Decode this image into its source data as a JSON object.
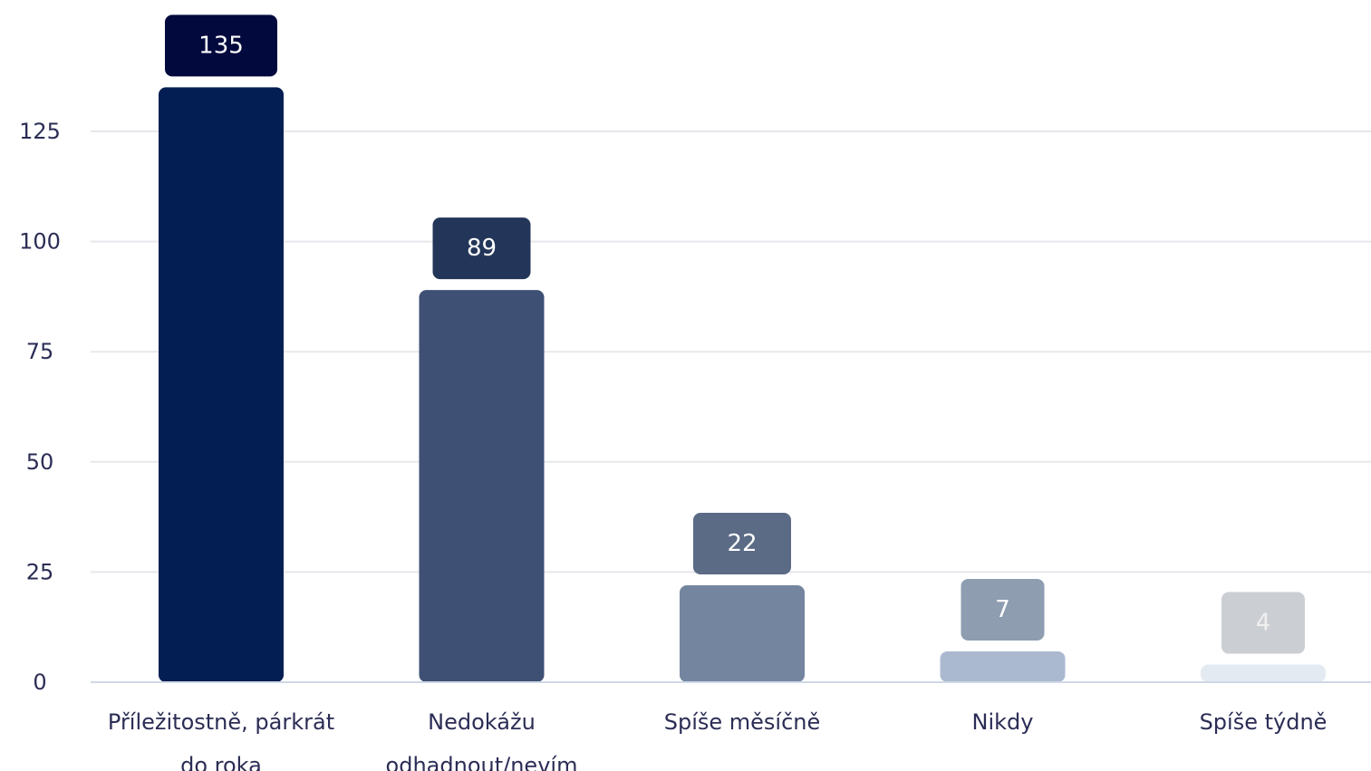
{
  "chart_data": {
    "type": "bar",
    "title": "",
    "xlabel": "",
    "ylabel": "",
    "categories": [
      [
        "Příležitostně, párkrát",
        "do roka"
      ],
      [
        "Nedokážu",
        "odhadnout/nevím"
      ],
      [
        "Spíše měsíčně"
      ],
      [
        "Nikdy"
      ],
      [
        "Spíše týdně"
      ]
    ],
    "values": [
      135,
      89,
      22,
      7,
      4
    ],
    "ylim": [
      0,
      135
    ],
    "yticks": [
      0,
      25,
      50,
      75,
      100,
      125
    ],
    "grid": true,
    "legend": "none",
    "bar_colors": [
      "#021e52",
      "#3f5075",
      "#74859f",
      "#abb9d0",
      "#e4eaf2"
    ],
    "label_box_colors": [
      "#020a3d",
      "#233659",
      "#5b6a85",
      "#8e9db0",
      "#cbced3"
    ],
    "label_text_colors": [
      "#ffffff",
      "#ffffff",
      "#ffffff",
      "#ffffff",
      "#f0f0f0"
    ],
    "gridline_color": "#e7e8ec",
    "axis_color": "#cfd8e6",
    "text_color": "#2b2d55"
  }
}
